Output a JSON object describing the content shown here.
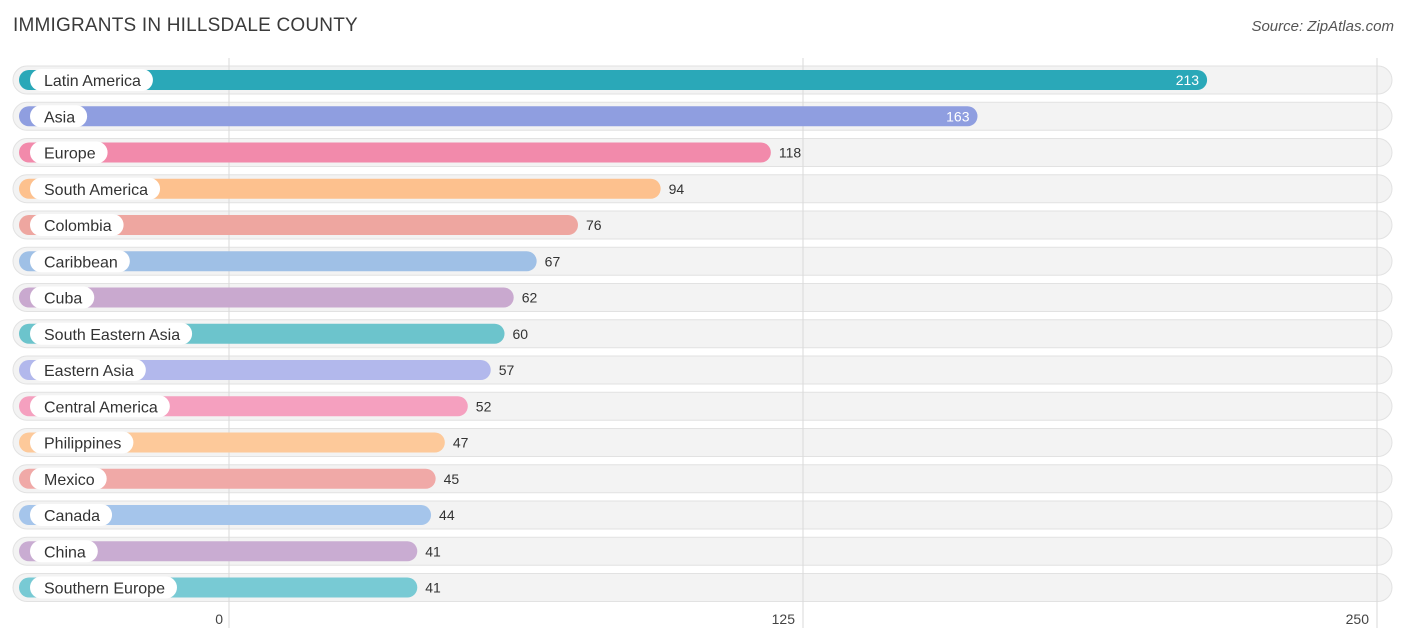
{
  "header": {
    "title": "IMMIGRANTS IN HILLSDALE COUNTY",
    "source": "Source: ZipAtlas.com"
  },
  "chart_data": {
    "type": "bar",
    "orientation": "horizontal",
    "title": "IMMIGRANTS IN HILLSDALE COUNTY",
    "xlabel": "",
    "ylabel": "",
    "xlim": [
      0,
      250
    ],
    "ticks": [
      0,
      125,
      250
    ],
    "grid": true,
    "categories": [
      "Latin America",
      "Asia",
      "Europe",
      "South America",
      "Colombia",
      "Caribbean",
      "Cuba",
      "South Eastern Asia",
      "Eastern Asia",
      "Central America",
      "Philippines",
      "Mexico",
      "Canada",
      "China",
      "Southern Europe"
    ],
    "values": [
      213,
      163,
      118,
      94,
      76,
      67,
      62,
      60,
      57,
      52,
      47,
      45,
      44,
      41,
      41
    ],
    "colors": [
      "#2aa8b8",
      "#8f9ee0",
      "#f28aab",
      "#fdc18e",
      "#eea6a0",
      "#9fc0e6",
      "#c9a9cf",
      "#6cc4cc",
      "#b2b8ec",
      "#f5a0bf",
      "#fdc99a",
      "#f0a9a7",
      "#a5c5eb",
      "#c9acd2",
      "#78cad4"
    ]
  }
}
